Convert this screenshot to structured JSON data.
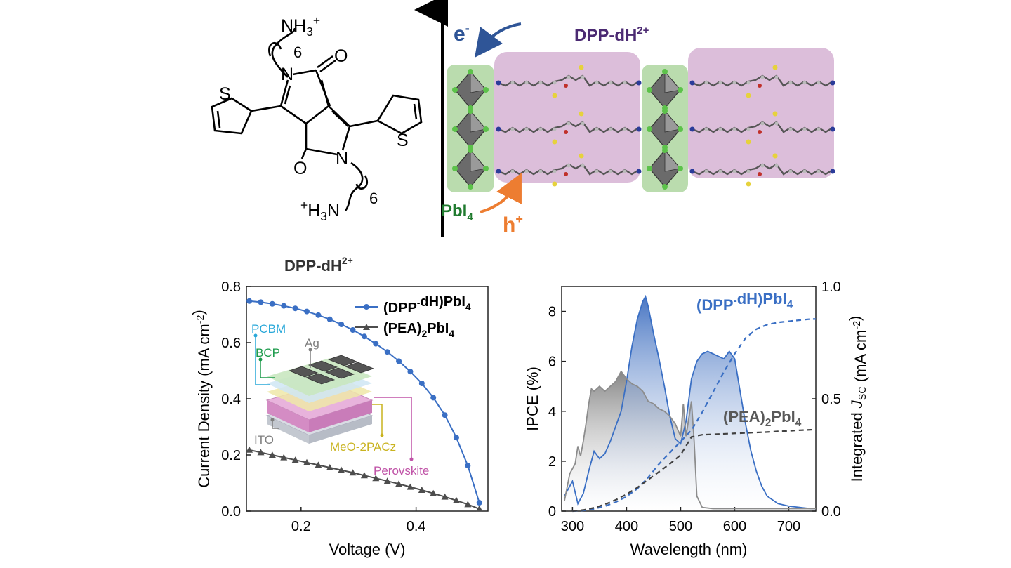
{
  "molecule": {
    "labels": {
      "nh3_top": "NH3+",
      "six_top": "6",
      "n_top": "N",
      "o_top": "O",
      "s_left": "S",
      "s_right": "S",
      "o_bottom": "O",
      "n_bottom": "N",
      "six_bottom": "6",
      "h3n_bottom": "+H3N"
    }
  },
  "schematic": {
    "electron": "e",
    "electron_sup": "-",
    "cation": "DPP-dH",
    "cation_sup": "2+",
    "inorganic": "PbI",
    "inorganic_sub": "4",
    "hole": "h",
    "hole_sup": "+",
    "colors": {
      "organic": "#c99bc6",
      "inorganic": "#a9d39a",
      "electron_arrow": "#2f5597",
      "hole_arrow": "#ed7d31",
      "cation_text": "#4b2a72",
      "pbi_text": "#1f7a2e"
    }
  },
  "jv_plot": {
    "header": "DPP-dH",
    "header_sup": "2+",
    "stack_labels": {
      "pcbm": "PCBM",
      "bcp": "BCP",
      "ag": "Ag",
      "ito": "ITO",
      "meo": "MeO-2PACz",
      "perovskite": "Perovskite"
    },
    "stack_colors": {
      "pcbm": "#29a8d9",
      "bcp": "#1b9a4a",
      "ag": "#7f7f7f",
      "ito": "#7f7f7f",
      "meo": "#c9b31f",
      "perovskite": "#c053a7"
    }
  },
  "chart_data": [
    {
      "type": "line",
      "xlabel": "Voltage (V)",
      "ylabel": "Current Density (mA cm-2)",
      "xlim": [
        0.105,
        0.525
      ],
      "ylim": [
        0,
        0.8
      ],
      "xticks": [
        "0.2",
        "0.4"
      ],
      "xtick_values": [
        0.2,
        0.4
      ],
      "yticks": [
        "0.0",
        "0.2",
        "0.4",
        "0.6",
        "0.8"
      ],
      "ytick_values": [
        0,
        0.2,
        0.4,
        0.6,
        0.8
      ],
      "legend_position": "top-right",
      "series": [
        {
          "name": "(DPP-dH)PbI4",
          "color": "#3a6fc4",
          "marker": "circle",
          "x": [
            0.11,
            0.13,
            0.15,
            0.17,
            0.19,
            0.21,
            0.23,
            0.25,
            0.27,
            0.29,
            0.31,
            0.33,
            0.35,
            0.37,
            0.39,
            0.41,
            0.43,
            0.45,
            0.47,
            0.49,
            0.51
          ],
          "y": [
            0.748,
            0.744,
            0.738,
            0.731,
            0.722,
            0.711,
            0.698,
            0.683,
            0.665,
            0.645,
            0.622,
            0.596,
            0.567,
            0.534,
            0.497,
            0.455,
            0.404,
            0.342,
            0.262,
            0.162,
            0.03
          ]
        },
        {
          "name": "(PEA)2PbI4",
          "color": "#4d4d4d",
          "marker": "triangle",
          "x": [
            0.11,
            0.13,
            0.15,
            0.17,
            0.19,
            0.21,
            0.23,
            0.25,
            0.27,
            0.29,
            0.31,
            0.33,
            0.35,
            0.37,
            0.39,
            0.41,
            0.43,
            0.45,
            0.47,
            0.49,
            0.51
          ],
          "y": [
            0.218,
            0.209,
            0.2,
            0.191,
            0.182,
            0.173,
            0.164,
            0.155,
            0.146,
            0.137,
            0.127,
            0.117,
            0.107,
            0.097,
            0.086,
            0.075,
            0.063,
            0.051,
            0.038,
            0.024,
            0.008
          ]
        }
      ]
    },
    {
      "type": "line",
      "xlabel": "Wavelength (nm)",
      "ylabel": "IPCE (%)",
      "ylabel_right": "Integrated JSC (mA cm-2)",
      "xlim": [
        280,
        750
      ],
      "ylim": [
        0,
        9
      ],
      "ylim_right": [
        0,
        1.0
      ],
      "xticks": [
        "300",
        "400",
        "500",
        "600",
        "700"
      ],
      "xtick_values": [
        300,
        400,
        500,
        600,
        700
      ],
      "yticks": [
        "0",
        "2",
        "4",
        "6",
        "8"
      ],
      "ytick_values": [
        0,
        2,
        4,
        6,
        8
      ],
      "yticks_right": [
        "0.0",
        "0.5",
        "1.0"
      ],
      "ytick_values_right": [
        0,
        0.5,
        1.0
      ],
      "series": [
        {
          "name": "(DPP-dH)PbI4",
          "color": "#3a6fc4",
          "axis": "left",
          "x": [
            285,
            300,
            310,
            320,
            330,
            340,
            350,
            360,
            370,
            380,
            390,
            400,
            410,
            420,
            430,
            435,
            440,
            450,
            460,
            470,
            480,
            490,
            500,
            510,
            520,
            530,
            540,
            550,
            560,
            570,
            580,
            590,
            600,
            610,
            620,
            630,
            640,
            650,
            660,
            680,
            700,
            720,
            740,
            750
          ],
          "y": [
            0.6,
            1.2,
            0.3,
            0.7,
            1.6,
            2.4,
            2.1,
            2.3,
            2.8,
            3.4,
            4.0,
            5.2,
            6.6,
            7.7,
            8.4,
            8.6,
            8.2,
            7.1,
            6.1,
            5.0,
            3.8,
            2.9,
            2.7,
            3.6,
            5.3,
            6.0,
            6.3,
            6.4,
            6.3,
            6.2,
            6.1,
            6.4,
            6.1,
            4.8,
            3.5,
            2.4,
            1.6,
            1.0,
            0.6,
            0.3,
            0.2,
            0.15,
            0.1,
            0.1
          ]
        },
        {
          "name": "(PEA)2PbI4",
          "color": "#8c8c8c",
          "axis": "left",
          "x": [
            285,
            295,
            305,
            310,
            315,
            320,
            325,
            330,
            335,
            340,
            350,
            360,
            370,
            380,
            390,
            400,
            410,
            420,
            430,
            440,
            450,
            460,
            470,
            480,
            490,
            500,
            505,
            510,
            515,
            520,
            525,
            530,
            540,
            560,
            600,
            650,
            700,
            750
          ],
          "y": [
            0.4,
            1.5,
            1.9,
            2.6,
            2.2,
            2.8,
            3.5,
            4.3,
            4.9,
            4.8,
            5.0,
            4.8,
            5.0,
            5.2,
            5.6,
            5.3,
            5.1,
            5.0,
            4.8,
            4.4,
            4.3,
            4.1,
            4.0,
            3.8,
            3.5,
            3.0,
            4.3,
            3.0,
            3.7,
            4.4,
            2.8,
            0.6,
            0.15,
            0.1,
            0.1,
            0.1,
            0.1,
            0.1
          ]
        },
        {
          "name": "(DPP-dH)PbI4",
          "color": "#3a6fc4",
          "axis": "right",
          "dashed": true,
          "x": [
            300,
            320,
            340,
            360,
            380,
            400,
            420,
            440,
            460,
            480,
            500,
            520,
            540,
            560,
            580,
            600,
            620,
            640,
            660,
            680,
            700,
            720,
            740,
            750
          ],
          "y": [
            0.0,
            0.003,
            0.01,
            0.022,
            0.04,
            0.065,
            0.1,
            0.15,
            0.21,
            0.26,
            0.31,
            0.36,
            0.44,
            0.53,
            0.62,
            0.7,
            0.77,
            0.81,
            0.83,
            0.84,
            0.845,
            0.85,
            0.855,
            0.855
          ]
        },
        {
          "name": "(PEA)2PbI4",
          "color": "#404040",
          "axis": "right",
          "dashed": true,
          "x": [
            300,
            320,
            340,
            360,
            380,
            400,
            420,
            440,
            460,
            480,
            500,
            520,
            540,
            560,
            580,
            600,
            620,
            640,
            660,
            680,
            700,
            720,
            740,
            750
          ],
          "y": [
            0.0,
            0.005,
            0.015,
            0.03,
            0.05,
            0.075,
            0.105,
            0.14,
            0.175,
            0.21,
            0.25,
            0.33,
            0.34,
            0.342,
            0.344,
            0.346,
            0.348,
            0.35,
            0.352,
            0.355,
            0.357,
            0.36,
            0.362,
            0.363
          ]
        }
      ],
      "annotations": [
        {
          "text": "(DPP-dH)PbI4",
          "color": "#3a6fc4"
        },
        {
          "text": "(PEA)2PbI4",
          "color": "#595959"
        }
      ]
    }
  ]
}
